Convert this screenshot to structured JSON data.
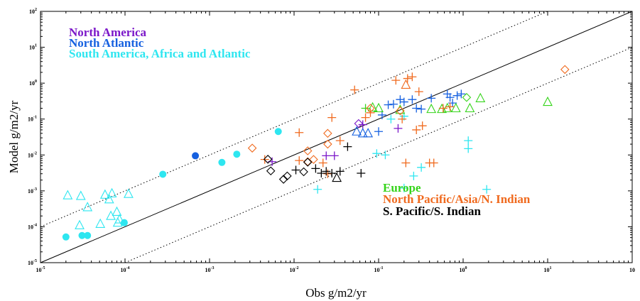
{
  "chart_data": {
    "type": "scatter",
    "xlabel": "Obs g/m2/yr",
    "ylabel": "Model g/m2/yr",
    "xscale": "log",
    "yscale": "log",
    "xlim": [
      1e-05,
      100
    ],
    "ylim": [
      1e-05,
      100
    ],
    "x_ticks": [
      {
        "value": 1e-05,
        "base": "10",
        "exp": "-5"
      },
      {
        "value": 0.0001,
        "base": "10",
        "exp": "-4"
      },
      {
        "value": 0.001,
        "base": "10",
        "exp": "-3"
      },
      {
        "value": 0.01,
        "base": "10",
        "exp": "-2"
      },
      {
        "value": 0.1,
        "base": "10",
        "exp": "-1"
      },
      {
        "value": 1,
        "base": "10",
        "exp": "0"
      },
      {
        "value": 10,
        "base": "10",
        "exp": "1"
      },
      {
        "value": 100,
        "base": "10",
        "exp": ""
      }
    ],
    "y_ticks": [
      {
        "value": 1e-05,
        "base": "10",
        "exp": "-5"
      },
      {
        "value": 0.0001,
        "base": "10",
        "exp": "-4"
      },
      {
        "value": 0.001,
        "base": "10",
        "exp": "-3"
      },
      {
        "value": 0.01,
        "base": "10",
        "exp": "-2"
      },
      {
        "value": 0.1,
        "base": "10",
        "exp": "-1"
      },
      {
        "value": 1,
        "base": "10",
        "exp": "0"
      },
      {
        "value": 10,
        "base": "10",
        "exp": "1"
      },
      {
        "value": 100,
        "base": "10",
        "exp": "2"
      }
    ],
    "reference_lines": [
      {
        "style": "solid",
        "factor": 1
      },
      {
        "style": "dotted",
        "factor": 10
      },
      {
        "style": "dotted",
        "factor": 0.1
      }
    ],
    "legend_upper": [
      {
        "label": "North America",
        "color": "#7B17C9"
      },
      {
        "label": "North Atlantic",
        "color": "#1560E0"
      },
      {
        "label": "South America, Africa and Atlantic",
        "color": "#2EE6F0"
      }
    ],
    "legend_lower": [
      {
        "label": "Europe",
        "color": "#35D41A"
      },
      {
        "label": "North Pacific/Asia/N. Indian",
        "color": "#F06A1E"
      },
      {
        "label": "S. Pacific/S. Indian",
        "color": "#000000"
      }
    ],
    "series": [
      {
        "name": "North America",
        "color": "#7B17C9",
        "points": [
          {
            "x": 0.024,
            "y": 0.0095,
            "m": "plus"
          },
          {
            "x": 0.03,
            "y": 0.0095,
            "m": "plus"
          },
          {
            "x": 0.058,
            "y": 0.075,
            "m": "diamond"
          },
          {
            "x": 0.065,
            "y": 0.07,
            "m": "plus"
          },
          {
            "x": 0.17,
            "y": 0.055,
            "m": "plus"
          },
          {
            "x": 0.0055,
            "y": 0.0065,
            "m": "plus"
          }
        ]
      },
      {
        "name": "North Atlantic",
        "color": "#1560E0",
        "points": [
          {
            "x": 0.00068,
            "y": 0.0095,
            "m": "dot"
          },
          {
            "x": 0.055,
            "y": 0.045,
            "m": "tri"
          },
          {
            "x": 0.065,
            "y": 0.04,
            "m": "tri"
          },
          {
            "x": 0.075,
            "y": 0.04,
            "m": "tri"
          },
          {
            "x": 0.1,
            "y": 0.045,
            "m": "plus"
          },
          {
            "x": 0.11,
            "y": 0.13,
            "m": "plus"
          },
          {
            "x": 0.13,
            "y": 0.25,
            "m": "plus"
          },
          {
            "x": 0.15,
            "y": 0.26,
            "m": "plus"
          },
          {
            "x": 0.18,
            "y": 0.35,
            "m": "plus"
          },
          {
            "x": 0.2,
            "y": 0.3,
            "m": "plus"
          },
          {
            "x": 0.25,
            "y": 0.35,
            "m": "plus"
          },
          {
            "x": 0.28,
            "y": 0.2,
            "m": "plus"
          },
          {
            "x": 0.32,
            "y": 0.19,
            "m": "plus"
          },
          {
            "x": 0.42,
            "y": 0.38,
            "m": "plus"
          },
          {
            "x": 0.65,
            "y": 0.5,
            "m": "plus"
          },
          {
            "x": 0.7,
            "y": 0.4,
            "m": "plus"
          },
          {
            "x": 0.85,
            "y": 0.45,
            "m": "plus"
          },
          {
            "x": 0.95,
            "y": 0.5,
            "m": "plus"
          },
          {
            "x": 0.75,
            "y": 0.28,
            "m": "plus"
          }
        ]
      },
      {
        "name": "South America, Africa and Atlantic",
        "color": "#2EE6F0",
        "points": [
          {
            "x": 2.1e-05,
            "y": 0.00075,
            "m": "tri"
          },
          {
            "x": 3e-05,
            "y": 0.00072,
            "m": "tri"
          },
          {
            "x": 3.6e-05,
            "y": 0.00035,
            "m": "tri"
          },
          {
            "x": 2.9e-05,
            "y": 0.00011,
            "m": "tri"
          },
          {
            "x": 5.1e-05,
            "y": 0.00012,
            "m": "tri"
          },
          {
            "x": 5.8e-05,
            "y": 0.00078,
            "m": "tri"
          },
          {
            "x": 6.5e-05,
            "y": 0.00058,
            "m": "tri"
          },
          {
            "x": 7e-05,
            "y": 0.00085,
            "m": "tri"
          },
          {
            "x": 6.8e-05,
            "y": 0.0002,
            "m": "tri"
          },
          {
            "x": 8e-05,
            "y": 0.00026,
            "m": "tri"
          },
          {
            "x": 8.6e-05,
            "y": 0.00016,
            "m": "tri"
          },
          {
            "x": 8.2e-05,
            "y": 0.00013,
            "m": "tri"
          },
          {
            "x": 0.00011,
            "y": 0.00082,
            "m": "tri"
          },
          {
            "x": 2e-05,
            "y": 5.2e-05,
            "m": "dot"
          },
          {
            "x": 3.1e-05,
            "y": 5.7e-05,
            "m": "dot"
          },
          {
            "x": 3.6e-05,
            "y": 5.7e-05,
            "m": "dot"
          },
          {
            "x": 9.8e-05,
            "y": 0.00013,
            "m": "dot"
          },
          {
            "x": 0.00028,
            "y": 0.0029,
            "m": "dot"
          },
          {
            "x": 0.0014,
            "y": 0.0062,
            "m": "dot"
          },
          {
            "x": 0.0021,
            "y": 0.0105,
            "m": "dot"
          },
          {
            "x": 0.0065,
            "y": 0.045,
            "m": "dot"
          },
          {
            "x": 0.019,
            "y": 0.0011,
            "m": "plus"
          },
          {
            "x": 0.095,
            "y": 0.011,
            "m": "plus"
          },
          {
            "x": 0.12,
            "y": 0.01,
            "m": "plus"
          },
          {
            "x": 0.14,
            "y": 0.1,
            "m": "plus"
          },
          {
            "x": 0.2,
            "y": 0.12,
            "m": "plus"
          },
          {
            "x": 0.2,
            "y": 0.0012,
            "m": "plus"
          },
          {
            "x": 0.26,
            "y": 0.0026,
            "m": "plus"
          },
          {
            "x": 0.32,
            "y": 0.0045,
            "m": "plus"
          },
          {
            "x": 1.15,
            "y": 0.025,
            "m": "plus"
          },
          {
            "x": 1.15,
            "y": 0.015,
            "m": "plus"
          },
          {
            "x": 1.9,
            "y": 0.0011,
            "m": "plus"
          }
        ]
      },
      {
        "name": "Europe",
        "color": "#35D41A",
        "points": [
          {
            "x": 0.085,
            "y": 0.21,
            "m": "tri"
          },
          {
            "x": 0.1,
            "y": 0.2,
            "m": "tri"
          },
          {
            "x": 0.18,
            "y": 0.18,
            "m": "tri"
          },
          {
            "x": 0.42,
            "y": 0.19,
            "m": "tri"
          },
          {
            "x": 0.56,
            "y": 0.19,
            "m": "tri"
          },
          {
            "x": 0.65,
            "y": 0.2,
            "m": "tri"
          },
          {
            "x": 0.82,
            "y": 0.2,
            "m": "tri"
          },
          {
            "x": 1.2,
            "y": 0.2,
            "m": "tri"
          },
          {
            "x": 1.6,
            "y": 0.38,
            "m": "tri"
          },
          {
            "x": 10,
            "y": 0.3,
            "m": "tri"
          },
          {
            "x": 1.1,
            "y": 0.4,
            "m": "diamond"
          },
          {
            "x": 0.07,
            "y": 0.2,
            "m": "plus"
          }
        ]
      },
      {
        "name": "North Pacific/Asia/N. Indian",
        "color": "#F06A1E",
        "points": [
          {
            "x": 0.0032,
            "y": 0.0155,
            "m": "diamond"
          },
          {
            "x": 0.0145,
            "y": 0.013,
            "m": "diamond"
          },
          {
            "x": 0.0145,
            "y": 0.0065,
            "m": "diamond"
          },
          {
            "x": 0.017,
            "y": 0.0075,
            "m": "diamond"
          },
          {
            "x": 0.025,
            "y": 0.02,
            "m": "diamond"
          },
          {
            "x": 0.025,
            "y": 0.04,
            "m": "diamond"
          },
          {
            "x": 0.08,
            "y": 0.2,
            "m": "diamond"
          },
          {
            "x": 0.18,
            "y": 0.17,
            "m": "diamond"
          },
          {
            "x": 16,
            "y": 2.4,
            "m": "diamond"
          },
          {
            "x": 0.21,
            "y": 0.9,
            "m": "tri"
          },
          {
            "x": 0.0045,
            "y": 0.0075,
            "m": "plus"
          },
          {
            "x": 0.0115,
            "y": 0.042,
            "m": "plus"
          },
          {
            "x": 0.0115,
            "y": 0.007,
            "m": "plus"
          },
          {
            "x": 0.022,
            "y": 0.006,
            "m": "plus"
          },
          {
            "x": 0.028,
            "y": 0.11,
            "m": "plus"
          },
          {
            "x": 0.025,
            "y": 0.003,
            "m": "plus"
          },
          {
            "x": 0.035,
            "y": 0.025,
            "m": "plus"
          },
          {
            "x": 0.052,
            "y": 0.65,
            "m": "plus"
          },
          {
            "x": 0.07,
            "y": 0.11,
            "m": "plus"
          },
          {
            "x": 0.08,
            "y": 0.15,
            "m": "plus"
          },
          {
            "x": 0.16,
            "y": 1.2,
            "m": "plus"
          },
          {
            "x": 0.19,
            "y": 0.1,
            "m": "plus"
          },
          {
            "x": 0.21,
            "y": 0.006,
            "m": "plus"
          },
          {
            "x": 0.22,
            "y": 1.35,
            "m": "plus"
          },
          {
            "x": 0.25,
            "y": 1.5,
            "m": "plus"
          },
          {
            "x": 0.28,
            "y": 0.05,
            "m": "plus"
          },
          {
            "x": 0.33,
            "y": 0.065,
            "m": "plus"
          },
          {
            "x": 0.4,
            "y": 0.006,
            "m": "plus"
          },
          {
            "x": 0.3,
            "y": 0.58,
            "m": "plus"
          },
          {
            "x": 0.45,
            "y": 0.006,
            "m": "plus"
          },
          {
            "x": 0.58,
            "y": 0.2,
            "m": "plus"
          },
          {
            "x": 0.7,
            "y": 0.22,
            "m": "plus"
          }
        ]
      },
      {
        "name": "S. Pacific/S. Indian",
        "color": "#000000",
        "points": [
          {
            "x": 0.0049,
            "y": 0.0076,
            "m": "diamond"
          },
          {
            "x": 0.0053,
            "y": 0.0036,
            "m": "diamond"
          },
          {
            "x": 0.0075,
            "y": 0.0021,
            "m": "diamond"
          },
          {
            "x": 0.0083,
            "y": 0.0026,
            "m": "diamond"
          },
          {
            "x": 0.013,
            "y": 0.0034,
            "m": "diamond"
          },
          {
            "x": 0.0145,
            "y": 0.0063,
            "m": "diamond"
          },
          {
            "x": 0.0105,
            "y": 0.0038,
            "m": "plus"
          },
          {
            "x": 0.018,
            "y": 0.0042,
            "m": "plus"
          },
          {
            "x": 0.021,
            "y": 0.0031,
            "m": "plus"
          },
          {
            "x": 0.024,
            "y": 0.0035,
            "m": "plus"
          },
          {
            "x": 0.028,
            "y": 0.0031,
            "m": "plus"
          },
          {
            "x": 0.035,
            "y": 0.0035,
            "m": "plus"
          },
          {
            "x": 0.043,
            "y": 0.017,
            "m": "plus"
          },
          {
            "x": 0.062,
            "y": 0.0031,
            "m": "plus"
          },
          {
            "x": 0.032,
            "y": 0.0023,
            "m": "tri"
          }
        ]
      }
    ]
  }
}
